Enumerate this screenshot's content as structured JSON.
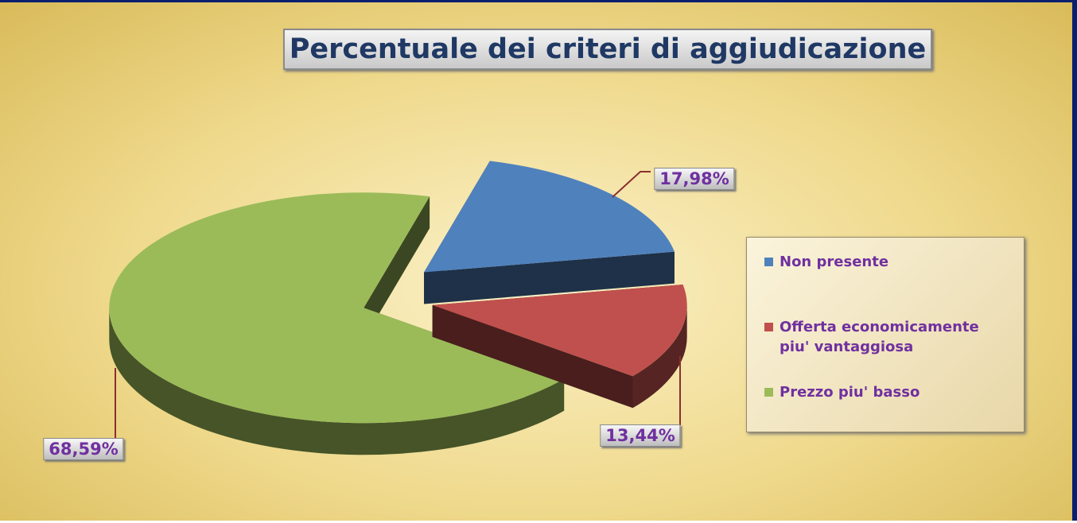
{
  "chart_data": {
    "type": "pie",
    "title": "Percentuale dei criteri di aggiudicazione",
    "series": [
      {
        "name": "Non presente",
        "color": "#4f81bd",
        "values": [
          17.98
        ],
        "value_labels": [
          "17,98%"
        ]
      },
      {
        "name": "Offerta economicamente piu' vantaggiosa",
        "color": "#c0504d",
        "values": [
          13.44
        ],
        "value_labels": [
          "13,44%"
        ]
      },
      {
        "name": "Prezzo piu' basso",
        "color": "#9bbb59",
        "values": [
          68.59
        ],
        "value_labels": [
          "68,59%"
        ]
      }
    ],
    "legend": "right"
  }
}
